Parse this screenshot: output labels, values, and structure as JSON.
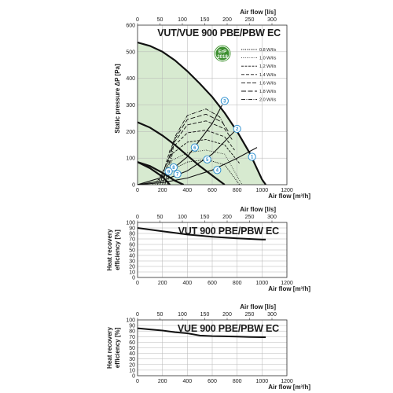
{
  "badge": {
    "label": "ErP",
    "year": "2018"
  },
  "chart_data": [
    {
      "type": "line",
      "title": "VUT/VUE 900 PBE/PBW EC",
      "xlabel": "Air flow [m³/h]",
      "x2label": "Air flow [l/s]",
      "ylabel": "Static pressure ΔP [Pa]",
      "xlim": [
        0,
        1200
      ],
      "ylim": [
        0,
        600
      ],
      "x2lim": [
        0,
        333.33
      ],
      "xticks": [
        0,
        200,
        400,
        600,
        800,
        1000,
        1200
      ],
      "x2ticks": [
        0,
        50,
        100,
        150,
        200,
        250,
        300
      ],
      "yticks": [
        0,
        100,
        200,
        300,
        400,
        500,
        600
      ],
      "grid": true,
      "legend_position": "top-right",
      "fan_curves": [
        {
          "x": [
            0,
            100,
            200,
            300,
            400,
            500,
            600,
            700,
            800,
            900,
            960,
            1000,
            1030
          ],
          "y": [
            535,
            522,
            500,
            468,
            427,
            380,
            330,
            270,
            200,
            120,
            60,
            20,
            0
          ]
        },
        {
          "x": [
            0,
            100,
            200,
            300,
            400,
            500,
            600,
            700
          ],
          "y": [
            235,
            215,
            185,
            150,
            110,
            70,
            35,
            0
          ]
        },
        {
          "x": [
            0,
            100,
            200,
            260
          ],
          "y": [
            85,
            62,
            30,
            0
          ]
        },
        {
          "x": [
            0,
            100,
            200,
            300,
            370
          ],
          "y": [
            85,
            70,
            45,
            15,
            0
          ]
        }
      ],
      "system_curves": [
        {
          "x": [
            0,
            200,
            400,
            600,
            680
          ],
          "y": [
            0,
            28,
            105,
            230,
            300
          ]
        },
        {
          "x": [
            0,
            200,
            400,
            600,
            820
          ],
          "y": [
            0,
            15,
            52,
            115,
            220
          ]
        },
        {
          "x": [
            0,
            200,
            400,
            600,
            800,
            960
          ],
          "y": [
            0,
            8,
            25,
            55,
            100,
            140
          ]
        }
      ],
      "sfp_curves": [
        {
          "name": "0.8 W/l/s",
          "x": [
            120,
            250,
            400,
            550,
            700,
            820
          ],
          "y": [
            0,
            50,
            85,
            95,
            75,
            0
          ]
        },
        {
          "name": "1.0 W/l/s",
          "x": [
            140,
            250,
            400,
            550,
            700,
            840
          ],
          "y": [
            0,
            85,
            120,
            130,
            115,
            0
          ]
        },
        {
          "name": "1.2 W/l/s",
          "x": [
            160,
            260,
            400,
            550,
            700,
            820
          ],
          "y": [
            0,
            110,
            160,
            170,
            150,
            80
          ]
        },
        {
          "name": "1.4 W/l/s",
          "x": [
            180,
            260,
            400,
            550,
            700,
            780
          ],
          "y": [
            0,
            130,
            195,
            205,
            180,
            130
          ]
        },
        {
          "name": "1.6 W/l/s",
          "x": [
            200,
            280,
            400,
            550,
            700,
            760
          ],
          "y": [
            0,
            150,
            225,
            240,
            210,
            170
          ]
        },
        {
          "name": "1.8 W/l/s",
          "x": [
            220,
            290,
            400,
            550,
            680,
            730
          ],
          "y": [
            0,
            165,
            245,
            265,
            235,
            200
          ]
        },
        {
          "name": "2.0 W/l/s",
          "x": [
            240,
            300,
            400,
            550,
            660,
            700
          ],
          "y": [
            0,
            180,
            260,
            285,
            255,
            220
          ]
        }
      ],
      "markers": [
        {
          "label": "1",
          "x": 920,
          "y": 105
        },
        {
          "label": "2",
          "x": 800,
          "y": 210
        },
        {
          "label": "3",
          "x": 700,
          "y": 315
        },
        {
          "label": "4",
          "x": 640,
          "y": 55
        },
        {
          "label": "5",
          "x": 560,
          "y": 95
        },
        {
          "label": "6",
          "x": 460,
          "y": 140
        },
        {
          "label": "7",
          "x": 320,
          "y": 40
        },
        {
          "label": "8",
          "x": 290,
          "y": 65
        },
        {
          "label": "9",
          "x": 250,
          "y": 50
        }
      ]
    },
    {
      "type": "line",
      "title": "VUT 900 PBE/PBW EC",
      "xlabel": "Air flow [m³/h]",
      "x2label": "Air flow [l/s]",
      "ylabel": "Heat recovery efficiency [%]",
      "xlim": [
        0,
        1200
      ],
      "ylim": [
        0,
        100
      ],
      "x2lim": [
        0,
        333.33
      ],
      "xticks": [
        0,
        200,
        400,
        600,
        800,
        1000,
        1200
      ],
      "x2ticks": [
        0,
        50,
        100,
        150,
        200,
        250,
        300
      ],
      "yticks": [
        0,
        10,
        20,
        30,
        40,
        50,
        60,
        70,
        80,
        90,
        100
      ],
      "grid": true,
      "series": [
        {
          "x": [
            0,
            100,
            200,
            300,
            400,
            500,
            600,
            700,
            800,
            900,
            1000,
            1030
          ],
          "y": [
            90,
            87,
            84,
            81,
            78,
            76,
            74,
            72.5,
            71,
            70,
            69,
            69
          ]
        }
      ]
    },
    {
      "type": "line",
      "title": "VUE 900 PBE/PBW EC",
      "xlabel": "Air flow [m³/h]",
      "x2label": "Air flow [l/s]",
      "ylabel": "Heat recovery efficiency [%]",
      "xlim": [
        0,
        1200
      ],
      "ylim": [
        0,
        100
      ],
      "x2lim": [
        0,
        333.33
      ],
      "xticks": [
        0,
        200,
        400,
        600,
        800,
        1000,
        1200
      ],
      "x2ticks": [
        0,
        50,
        100,
        150,
        200,
        250,
        300
      ],
      "yticks": [
        0,
        10,
        20,
        30,
        40,
        50,
        60,
        70,
        80,
        90,
        100
      ],
      "grid": true,
      "series": [
        {
          "x": [
            0,
            100,
            200,
            300,
            400,
            500,
            600,
            700,
            800,
            900,
            1000,
            1030
          ],
          "y": [
            85,
            83,
            81,
            78,
            76,
            72,
            71,
            70.5,
            70,
            69.5,
            69,
            69
          ]
        }
      ]
    }
  ]
}
